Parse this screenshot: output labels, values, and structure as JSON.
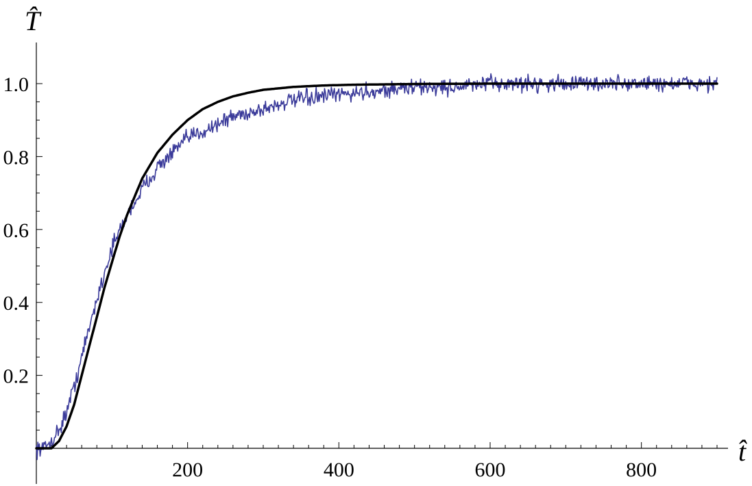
{
  "chart_data": {
    "type": "line",
    "title": "",
    "xlabel": "t̂",
    "ylabel": "T̂",
    "xlim": [
      0,
      900
    ],
    "ylim": [
      0,
      1.05
    ],
    "x_ticks": [
      200,
      400,
      600,
      800
    ],
    "y_ticks": [
      0.2,
      0.4,
      0.6,
      0.8,
      1.0
    ],
    "x_tick_labels": [
      "200",
      "400",
      "600",
      "800"
    ],
    "y_tick_labels": [
      "0.2",
      "0.4",
      "0.6",
      "0.8",
      "1.0"
    ],
    "grid": false,
    "legend": "none",
    "series": [
      {
        "color": "#3b3b9a",
        "style": "noisy",
        "x": [
          0,
          10,
          20,
          30,
          40,
          50,
          60,
          70,
          80,
          90,
          100,
          120,
          140,
          160,
          180,
          200,
          220,
          240,
          260,
          280,
          300,
          330,
          360,
          400,
          450,
          500,
          550,
          600,
          650,
          700,
          750,
          800,
          850,
          900
        ],
        "values": [
          0.0,
          0.0,
          0.02,
          0.05,
          0.1,
          0.17,
          0.25,
          0.33,
          0.41,
          0.48,
          0.55,
          0.64,
          0.71,
          0.77,
          0.81,
          0.85,
          0.87,
          0.89,
          0.91,
          0.92,
          0.93,
          0.95,
          0.96,
          0.97,
          0.98,
          0.99,
          0.99,
          1.0,
          1.0,
          1.0,
          1.0,
          1.0,
          1.0,
          1.0
        ]
      },
      {
        "color": "#000000",
        "style": "smooth",
        "x": [
          0,
          20,
          30,
          40,
          50,
          60,
          70,
          80,
          90,
          100,
          110,
          120,
          140,
          160,
          180,
          200,
          220,
          240,
          260,
          280,
          300,
          340,
          380,
          420,
          460,
          500,
          600,
          700,
          800,
          900
        ],
        "values": [
          0.0,
          0.0,
          0.02,
          0.06,
          0.12,
          0.2,
          0.28,
          0.36,
          0.44,
          0.51,
          0.58,
          0.64,
          0.74,
          0.81,
          0.86,
          0.9,
          0.93,
          0.95,
          0.965,
          0.975,
          0.983,
          0.991,
          0.995,
          0.997,
          0.998,
          0.999,
          1.0,
          1.0,
          1.0,
          1.0
        ]
      }
    ]
  }
}
